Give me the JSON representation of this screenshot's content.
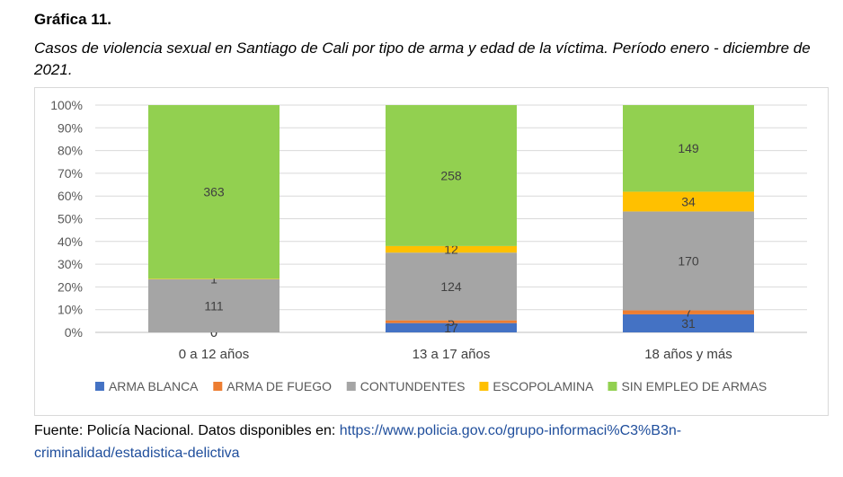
{
  "figure_label": "Gráfica 11.",
  "caption": "Casos de violencia sexual en Santiago de Cali por tipo de arma y edad de la víctima. Período enero - diciembre de 2021.",
  "source_text": "Fuente: Policía Nacional. Datos disponibles en: ",
  "source_link": "https://www.policia.gov.co/grupo-informaci%C3%B3n-criminalidad/estadistica-delictiva",
  "chart_data": {
    "type": "bar",
    "stacking": "percent",
    "categories": [
      "0 a 12 años",
      "13 a 17 años",
      "18 años y más"
    ],
    "y_tick_labels": [
      "0%",
      "10%",
      "20%",
      "30%",
      "40%",
      "50%",
      "60%",
      "70%",
      "80%",
      "90%",
      "100%"
    ],
    "ylim": [
      0,
      100
    ],
    "grid": true,
    "legend_position": "bottom",
    "series": [
      {
        "name": "ARMA BLANCA",
        "color": "#4472c4",
        "values": [
          0,
          17,
          31
        ]
      },
      {
        "name": "ARMA DE FUEGO",
        "color": "#ed7d31",
        "values": [
          0,
          5,
          7
        ]
      },
      {
        "name": "CONTUNDENTES",
        "color": "#a5a5a5",
        "values": [
          111,
          124,
          170
        ]
      },
      {
        "name": "ESCOPOLAMINA",
        "color": "#ffc000",
        "values": [
          1,
          12,
          34
        ]
      },
      {
        "name": "SIN EMPLEO DE ARMAS",
        "color": "#92d050",
        "values": [
          363,
          258,
          149
        ]
      }
    ]
  }
}
